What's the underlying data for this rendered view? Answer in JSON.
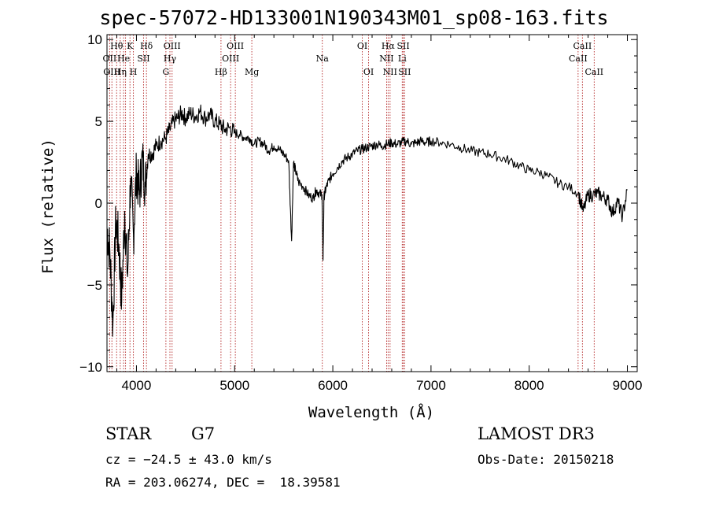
{
  "chart_data": {
    "type": "line",
    "title": "spec-57072-HD133001N190343M01_sp08-163.fits",
    "xlabel": "Wavelength (Å)",
    "ylabel": "Flux (relative)",
    "xlim": [
      3700,
      9100
    ],
    "ylim": [
      -10.3,
      10.3
    ],
    "x_ticks": [
      4000,
      5000,
      6000,
      7000,
      8000,
      9000
    ],
    "x_tick_labels": [
      "4000",
      "5000",
      "6000",
      "7000",
      "8000",
      "9000"
    ],
    "y_ticks": [
      -10,
      -5,
      0,
      5,
      10
    ],
    "y_tick_labels": [
      "−10",
      "−5",
      "0",
      "5",
      "10"
    ],
    "grid": false,
    "series": [
      {
        "color": "#000000",
        "x": [
          3700,
          3730,
          3760,
          3790,
          3820,
          3850,
          3880,
          3910,
          3940,
          3970,
          4000,
          4030,
          4060,
          4090,
          4120,
          4160,
          4200,
          4250,
          4300,
          4340,
          4380,
          4420,
          4460,
          4500,
          4550,
          4600,
          4650,
          4700,
          4750,
          4800,
          4850,
          4900,
          4950,
          5000,
          5050,
          5100,
          5150,
          5200,
          5250,
          5300,
          5350,
          5400,
          5450,
          5500,
          5550,
          5580,
          5600,
          5620,
          5650,
          5700,
          5750,
          5800,
          5830,
          5860,
          5890,
          5900,
          5910,
          5930,
          5960,
          6000,
          6050,
          6100,
          6150,
          6200,
          6250,
          6300,
          6350,
          6400,
          6450,
          6500,
          6550,
          6600,
          6650,
          6700,
          6750,
          6800,
          6850,
          6900,
          6950,
          7000,
          7100,
          7200,
          7300,
          7400,
          7500,
          7600,
          7700,
          7800,
          7900,
          8000,
          8100,
          8200,
          8300,
          8400,
          8500,
          8550,
          8600,
          8650,
          8700,
          8750,
          8800,
          8850,
          8900,
          8950,
          9000
        ],
        "y": [
          -1.5,
          -3.0,
          -7.5,
          -1.0,
          -2.5,
          -6.0,
          -0.5,
          -4.5,
          1.5,
          -2.0,
          2.0,
          0.5,
          2.8,
          1.0,
          3.0,
          3.0,
          3.5,
          3.8,
          4.0,
          4.5,
          5.0,
          5.2,
          5.5,
          5.2,
          5.5,
          5.3,
          5.6,
          5.2,
          5.4,
          5.0,
          4.8,
          4.5,
          4.6,
          4.3,
          4.2,
          4.0,
          4.0,
          3.6,
          3.8,
          3.6,
          3.2,
          3.5,
          3.3,
          3.0,
          2.6,
          -2.3,
          2.5,
          2.0,
          1.3,
          1.0,
          0.5,
          0.3,
          0.8,
          0.6,
          0.5,
          -3.5,
          0.4,
          0.9,
          1.4,
          1.8,
          2.2,
          2.6,
          2.8,
          3.0,
          3.2,
          3.3,
          3.4,
          3.5,
          3.6,
          3.5,
          3.6,
          3.7,
          3.6,
          3.7,
          3.8,
          3.6,
          3.7,
          3.8,
          3.7,
          3.8,
          3.7,
          3.6,
          3.4,
          3.2,
          3.1,
          3.0,
          2.8,
          2.6,
          2.3,
          2.0,
          1.9,
          1.6,
          1.2,
          1.0,
          0.6,
          -0.5,
          0.5,
          0.5,
          0.6,
          0.4,
          0.2,
          -0.6,
          0.1,
          -0.8,
          0.8
        ]
      }
    ],
    "lines": [
      {
        "x": 3727,
        "labels": [
          "OII"
        ],
        "row": 1
      },
      {
        "x": 3750,
        "labels": [
          "OIII"
        ],
        "row": 2
      },
      {
        "x": 3798,
        "labels": [
          "Hθ"
        ],
        "row": 0
      },
      {
        "x": 3835,
        "labels": [
          "Hη"
        ],
        "row": 2
      },
      {
        "x": 3869,
        "labels": [
          "He"
        ],
        "row": 1
      },
      {
        "x": 3889,
        "labels": [],
        "row": 0
      },
      {
        "x": 3934,
        "labels": [
          "K"
        ],
        "row": 0
      },
      {
        "x": 3969,
        "labels": [
          "H"
        ],
        "row": 2
      },
      {
        "x": 4072,
        "labels": [
          "SII"
        ],
        "row": 1
      },
      {
        "x": 4102,
        "labels": [
          "Hδ"
        ],
        "row": 0
      },
      {
        "x": 4300,
        "labels": [
          "G"
        ],
        "row": 2
      },
      {
        "x": 4341,
        "labels": [
          "Hγ"
        ],
        "row": 1
      },
      {
        "x": 4363,
        "labels": [
          "OIII"
        ],
        "row": 0
      },
      {
        "x": 4861,
        "labels": [
          "Hβ"
        ],
        "row": 2
      },
      {
        "x": 4959,
        "labels": [
          "OIII"
        ],
        "row": 1
      },
      {
        "x": 5007,
        "labels": [
          "OIII"
        ],
        "row": 0
      },
      {
        "x": 5175,
        "labels": [
          "Mg"
        ],
        "row": 2
      },
      {
        "x": 5893,
        "labels": [
          "Na"
        ],
        "row": 1
      },
      {
        "x": 6300,
        "labels": [
          "OI"
        ],
        "row": 0
      },
      {
        "x": 6364,
        "labels": [
          "OI"
        ],
        "row": 2
      },
      {
        "x": 6548,
        "labels": [
          "NII"
        ],
        "row": 1
      },
      {
        "x": 6563,
        "labels": [
          "Hα"
        ],
        "row": 0
      },
      {
        "x": 6583,
        "labels": [
          "NII"
        ],
        "row": 2
      },
      {
        "x": 6707,
        "labels": [
          "Li"
        ],
        "row": 1
      },
      {
        "x": 6717,
        "labels": [
          "SII"
        ],
        "row": 0
      },
      {
        "x": 6731,
        "labels": [
          "SII"
        ],
        "row": 2
      },
      {
        "x": 8498,
        "labels": [
          "CaII"
        ],
        "row": 1
      },
      {
        "x": 8542,
        "labels": [
          "CaII"
        ],
        "row": 0
      },
      {
        "x": 8662,
        "labels": [
          "CaII"
        ],
        "row": 2
      }
    ]
  },
  "info": {
    "class": "STAR",
    "subclass": "G7",
    "survey": "LAMOST DR3",
    "redshift": "cz = −24.5 ± 43.0 km/s",
    "obs_date": "Obs-Date: 20150218",
    "coords": "RA = 203.06274, DEC =  18.39581"
  }
}
